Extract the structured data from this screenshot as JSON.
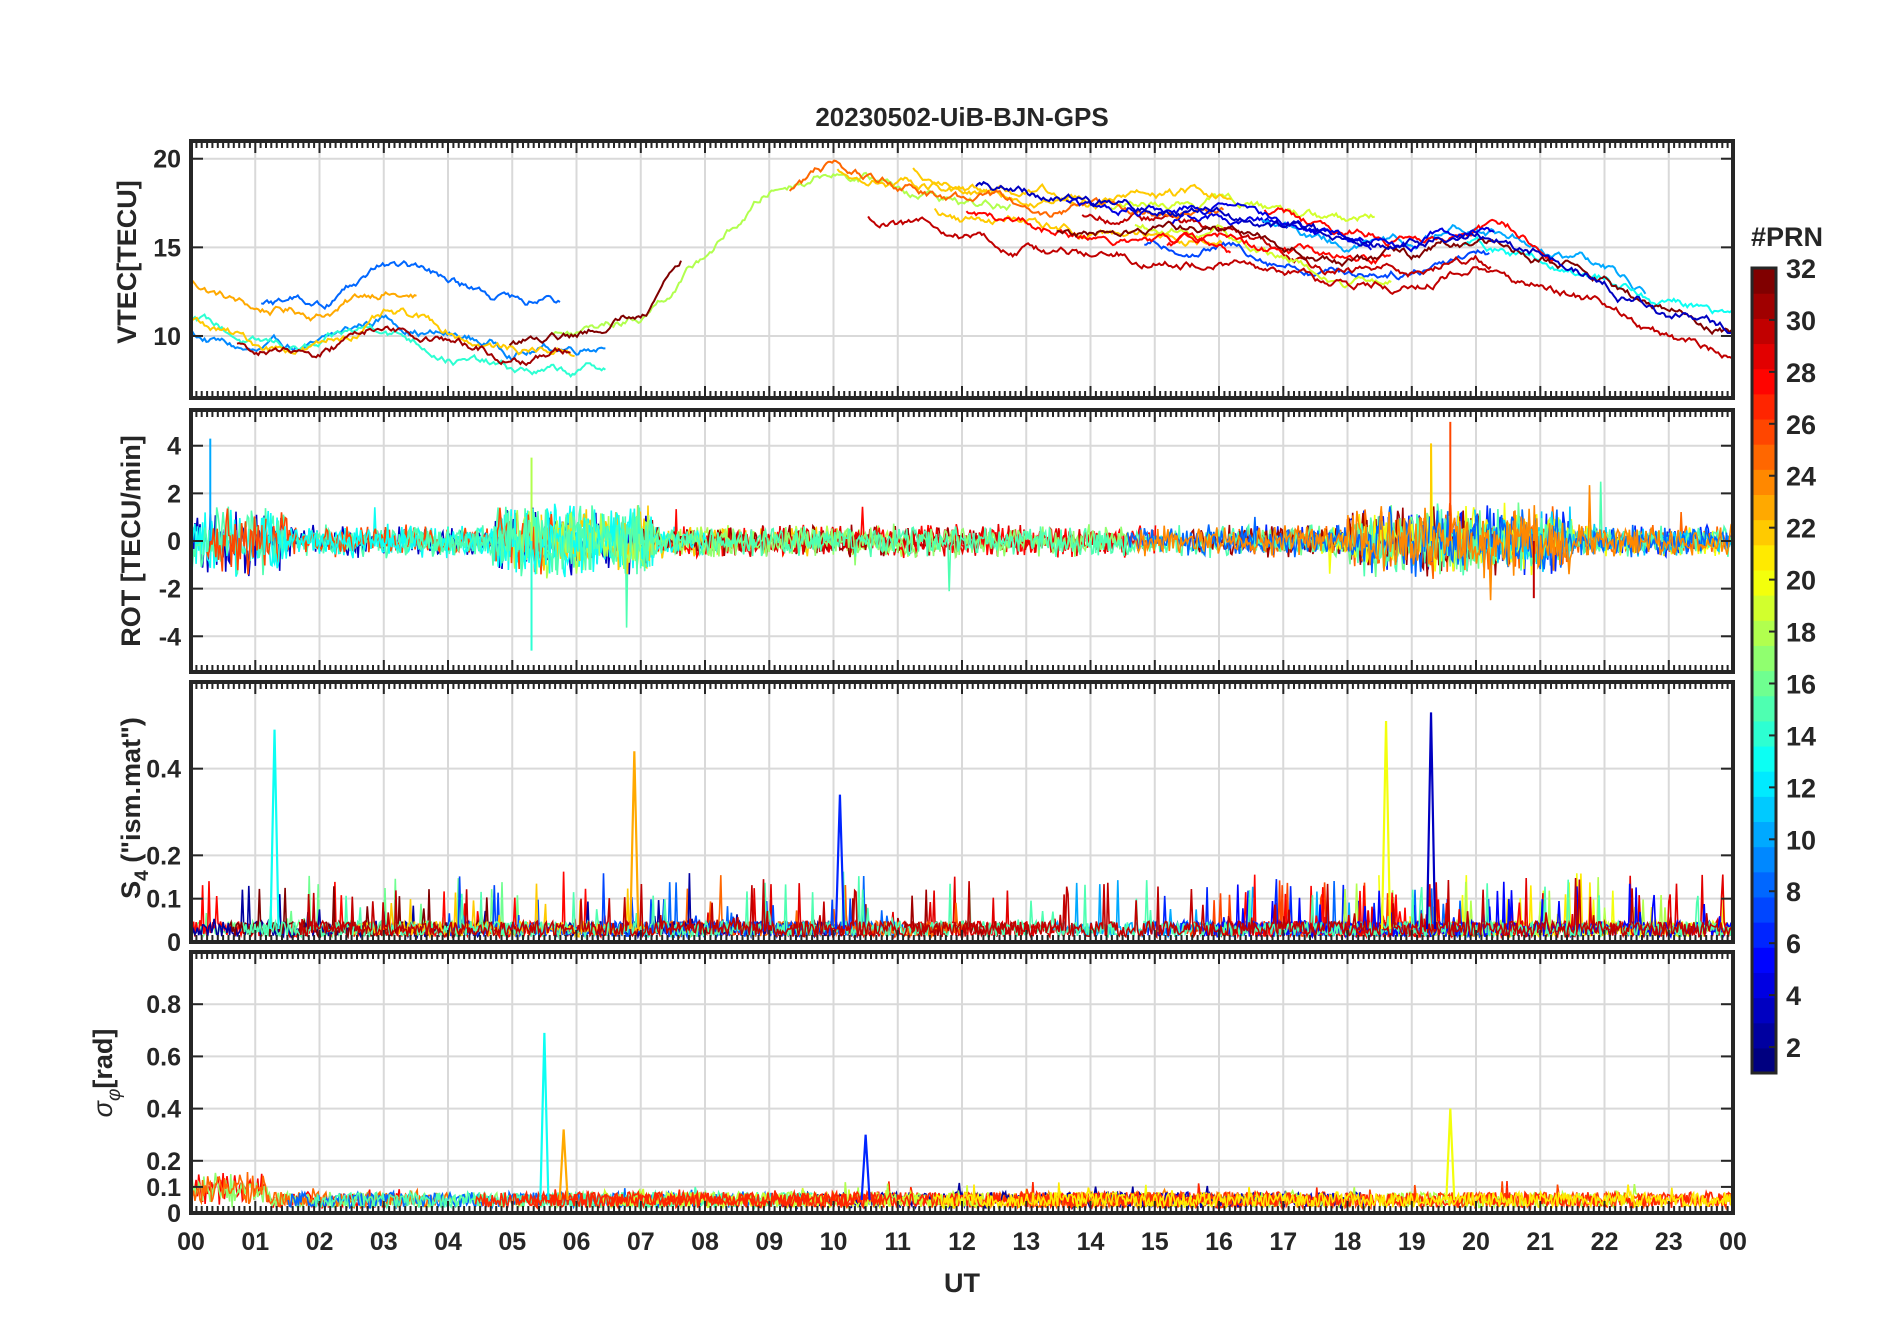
{
  "chart_data": [
    {
      "type": "line",
      "panel": "vtec",
      "title": "20230502-UiB-BJN-GPS",
      "ylabel": "VTEC[TECU]",
      "ylim": [
        6.5,
        21
      ],
      "yticks": [
        10,
        15,
        20
      ],
      "x_range_hours": [
        0,
        24
      ],
      "grid": true,
      "series_profile": [
        {
          "hour": 0,
          "value": 12
        },
        {
          "hour": 1,
          "value": 10.5
        },
        {
          "hour": 2,
          "value": 10.5
        },
        {
          "hour": 3,
          "value": 12
        },
        {
          "hour": 4,
          "value": 11
        },
        {
          "hour": 5,
          "value": 10
        },
        {
          "hour": 6,
          "value": 10
        },
        {
          "hour": 7,
          "value": 11
        },
        {
          "hour": 8,
          "value": 14.5
        },
        {
          "hour": 9,
          "value": 18
        },
        {
          "hour": 10,
          "value": 19.5
        },
        {
          "hour": 11,
          "value": 18.5
        },
        {
          "hour": 12,
          "value": 17.5
        },
        {
          "hour": 13,
          "value": 17
        },
        {
          "hour": 14,
          "value": 16.5
        },
        {
          "hour": 15,
          "value": 16.5
        },
        {
          "hour": 16,
          "value": 16.5
        },
        {
          "hour": 17,
          "value": 15.5
        },
        {
          "hour": 18,
          "value": 14.5
        },
        {
          "hour": 19,
          "value": 14.5
        },
        {
          "hour": 20,
          "value": 15.5
        },
        {
          "hour": 21,
          "value": 14.5
        },
        {
          "hour": 22,
          "value": 13
        },
        {
          "hour": 23,
          "value": 11
        },
        {
          "hour": 24,
          "value": 10
        }
      ]
    },
    {
      "type": "line",
      "panel": "rot",
      "ylabel": "ROT [TECU/min]",
      "ylim": [
        -5.5,
        5.5
      ],
      "yticks": [
        -4,
        -2,
        0,
        2,
        4
      ],
      "x_range_hours": [
        0,
        24
      ],
      "grid": true,
      "typical_amplitude": 0.5,
      "max_spikes": [
        {
          "hour": 0.3,
          "value": 4.3
        },
        {
          "hour": 5.3,
          "value": -4.6
        },
        {
          "hour": 5.3,
          "value": 3.5
        },
        {
          "hour": 19.3,
          "value": 4.1
        },
        {
          "hour": 19.6,
          "value": 5.0
        },
        {
          "hour": 20.9,
          "value": -2.4
        }
      ]
    },
    {
      "type": "line",
      "panel": "s4",
      "ylabel": "S4 (\"ism.mat\")",
      "ylabel_main": "S",
      "ylabel_sub": "4",
      "ylabel_rest": " (\"ism.mat\")",
      "ylim": [
        0,
        0.6
      ],
      "yticks": [
        0,
        0.1,
        0.2,
        0.4
      ],
      "x_range_hours": [
        0,
        24
      ],
      "grid": true,
      "baseline": 0.03,
      "max_spikes": [
        {
          "hour": 1.3,
          "value": 0.49
        },
        {
          "hour": 6.9,
          "value": 0.44
        },
        {
          "hour": 10.1,
          "value": 0.34
        },
        {
          "hour": 18.6,
          "value": 0.51
        },
        {
          "hour": 19.3,
          "value": 0.53
        }
      ]
    },
    {
      "type": "line",
      "panel": "sigma_phi",
      "ylabel": "σφ[rad]",
      "ylabel_main": "σ",
      "ylabel_sub": "φ",
      "ylabel_rest": "[rad]",
      "ylim": [
        0,
        1.0
      ],
      "yticks": [
        0,
        0.1,
        0.2,
        0.4,
        0.6,
        0.8
      ],
      "x_range_hours": [
        0,
        24
      ],
      "xlabel": "UT",
      "xtick_labels": [
        "00",
        "01",
        "02",
        "03",
        "04",
        "05",
        "06",
        "07",
        "08",
        "09",
        "10",
        "11",
        "12",
        "13",
        "14",
        "15",
        "16",
        "17",
        "18",
        "19",
        "20",
        "21",
        "22",
        "23",
        "00"
      ],
      "grid": true,
      "baseline": 0.05,
      "max_spikes": [
        {
          "hour": 5.5,
          "value": 0.69
        },
        {
          "hour": 5.8,
          "value": 0.32
        },
        {
          "hour": 10.5,
          "value": 0.3
        },
        {
          "hour": 19.6,
          "value": 0.4
        }
      ]
    }
  ],
  "colorbar": {
    "title": "#PRN",
    "ticks": [
      2,
      4,
      6,
      8,
      10,
      12,
      14,
      16,
      18,
      20,
      22,
      24,
      26,
      28,
      30,
      32
    ],
    "range": [
      1,
      32
    ],
    "colormap": "jet",
    "prn_count": 32
  },
  "colors": {
    "axis": "#262626",
    "grid": "#d9d9d9",
    "background": "#ffffff"
  }
}
